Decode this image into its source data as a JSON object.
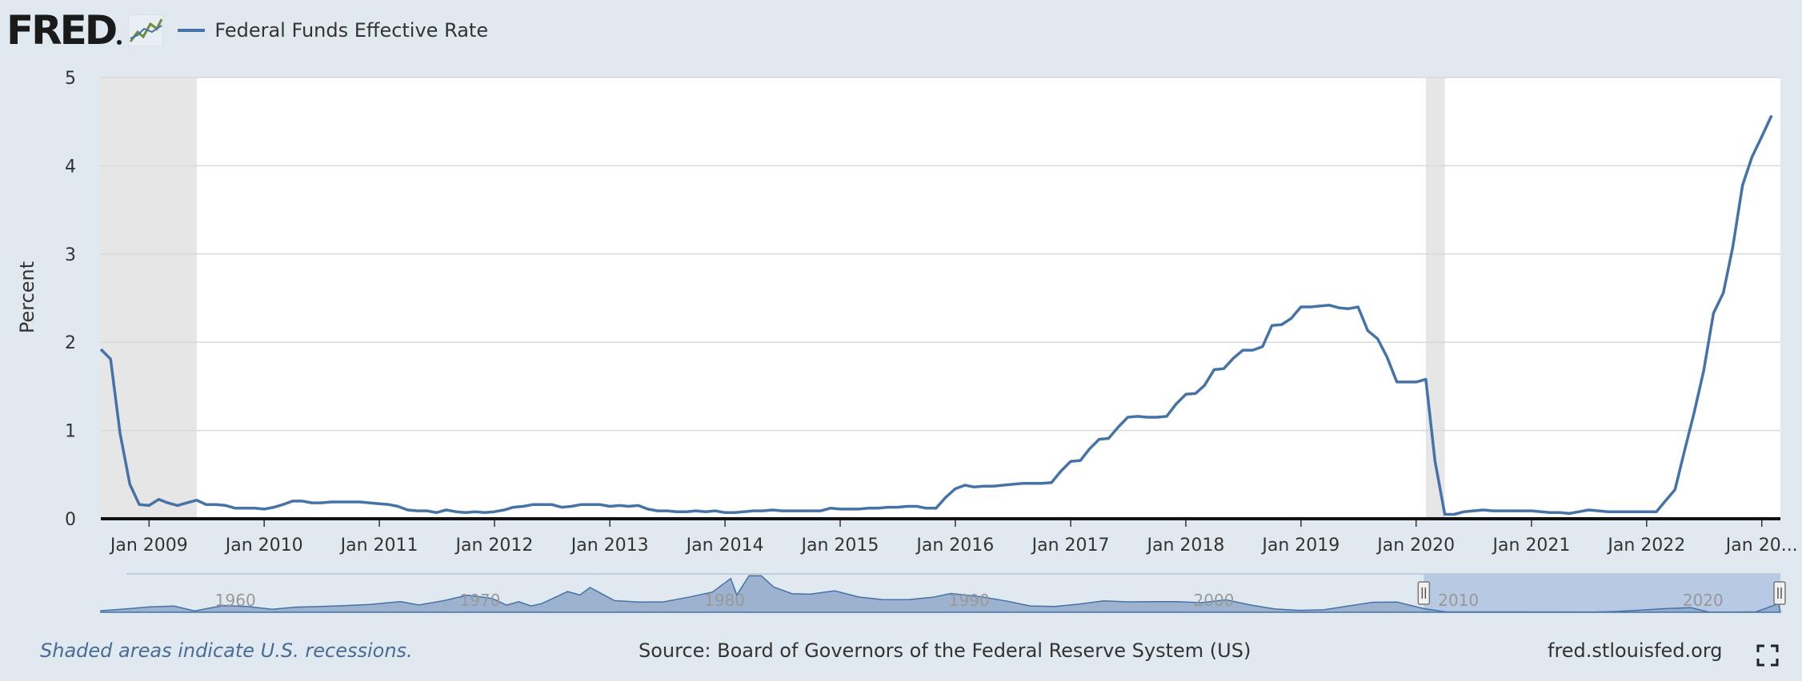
{
  "header": {
    "logo_text": "FRED",
    "legend_label": "Federal Funds Effective Rate"
  },
  "footer": {
    "note": "Shaded areas indicate U.S. recessions.",
    "source": "Source: Board of Governors of the Federal Reserve System (US)",
    "site": "fred.stlouisfed.org"
  },
  "colors": {
    "series": "#4572a7",
    "background": "#e1e9f0",
    "plot": "#ffffff",
    "recession": "#e6e6e6",
    "navigator_fill": "#8fa8c8",
    "navigator_window": "#b8c9e3"
  },
  "icons": {
    "logo_graph": "graph-icon",
    "fullscreen": "fullscreen-icon"
  },
  "chart_data": {
    "type": "line",
    "ylabel": "Percent",
    "ylim": [
      0,
      5
    ],
    "yticks": [
      0,
      1,
      2,
      3,
      4,
      5
    ],
    "xlim": [
      "2008-08-01",
      "2023-03-01"
    ],
    "xticks": [
      {
        "date": "2009-01-01",
        "label": "Jan 2009"
      },
      {
        "date": "2010-01-01",
        "label": "Jan 2010"
      },
      {
        "date": "2011-01-01",
        "label": "Jan 2011"
      },
      {
        "date": "2012-01-01",
        "label": "Jan 2012"
      },
      {
        "date": "2013-01-01",
        "label": "Jan 2013"
      },
      {
        "date": "2014-01-01",
        "label": "Jan 2014"
      },
      {
        "date": "2015-01-01",
        "label": "Jan 2015"
      },
      {
        "date": "2016-01-01",
        "label": "Jan 2016"
      },
      {
        "date": "2017-01-01",
        "label": "Jan 2017"
      },
      {
        "date": "2018-01-01",
        "label": "Jan 2018"
      },
      {
        "date": "2019-01-01",
        "label": "Jan 2019"
      },
      {
        "date": "2020-01-01",
        "label": "Jan 2020"
      },
      {
        "date": "2021-01-01",
        "label": "Jan 2021"
      },
      {
        "date": "2022-01-01",
        "label": "Jan 2022"
      },
      {
        "date": "2023-01-01",
        "label": "Jan 20..."
      }
    ],
    "grid": true,
    "recessions": [
      {
        "start": "2008-08-01",
        "end": "2009-06-01"
      },
      {
        "start": "2020-02-01",
        "end": "2020-04-01"
      }
    ],
    "series": [
      {
        "name": "Federal Funds Effective Rate",
        "points": [
          [
            "2008-08-01",
            1.92
          ],
          [
            "2008-09-01",
            1.81
          ],
          [
            "2008-10-01",
            0.97
          ],
          [
            "2008-11-01",
            0.39
          ],
          [
            "2008-12-01",
            0.16
          ],
          [
            "2009-01-01",
            0.15
          ],
          [
            "2009-02-01",
            0.22
          ],
          [
            "2009-03-01",
            0.18
          ],
          [
            "2009-04-01",
            0.15
          ],
          [
            "2009-05-01",
            0.18
          ],
          [
            "2009-06-01",
            0.21
          ],
          [
            "2009-07-01",
            0.16
          ],
          [
            "2009-08-01",
            0.16
          ],
          [
            "2009-09-01",
            0.15
          ],
          [
            "2009-10-01",
            0.12
          ],
          [
            "2009-11-01",
            0.12
          ],
          [
            "2009-12-01",
            0.12
          ],
          [
            "2010-01-01",
            0.11
          ],
          [
            "2010-02-01",
            0.13
          ],
          [
            "2010-03-01",
            0.16
          ],
          [
            "2010-04-01",
            0.2
          ],
          [
            "2010-05-01",
            0.2
          ],
          [
            "2010-06-01",
            0.18
          ],
          [
            "2010-07-01",
            0.18
          ],
          [
            "2010-08-01",
            0.19
          ],
          [
            "2010-09-01",
            0.19
          ],
          [
            "2010-10-01",
            0.19
          ],
          [
            "2010-11-01",
            0.19
          ],
          [
            "2010-12-01",
            0.18
          ],
          [
            "2011-01-01",
            0.17
          ],
          [
            "2011-02-01",
            0.16
          ],
          [
            "2011-03-01",
            0.14
          ],
          [
            "2011-04-01",
            0.1
          ],
          [
            "2011-05-01",
            0.09
          ],
          [
            "2011-06-01",
            0.09
          ],
          [
            "2011-07-01",
            0.07
          ],
          [
            "2011-08-01",
            0.1
          ],
          [
            "2011-09-01",
            0.08
          ],
          [
            "2011-10-01",
            0.07
          ],
          [
            "2011-11-01",
            0.08
          ],
          [
            "2011-12-01",
            0.07
          ],
          [
            "2012-01-01",
            0.08
          ],
          [
            "2012-02-01",
            0.1
          ],
          [
            "2012-03-01",
            0.13
          ],
          [
            "2012-04-01",
            0.14
          ],
          [
            "2012-05-01",
            0.16
          ],
          [
            "2012-06-01",
            0.16
          ],
          [
            "2012-07-01",
            0.16
          ],
          [
            "2012-08-01",
            0.13
          ],
          [
            "2012-09-01",
            0.14
          ],
          [
            "2012-10-01",
            0.16
          ],
          [
            "2012-11-01",
            0.16
          ],
          [
            "2012-12-01",
            0.16
          ],
          [
            "2013-01-01",
            0.14
          ],
          [
            "2013-02-01",
            0.15
          ],
          [
            "2013-03-01",
            0.14
          ],
          [
            "2013-04-01",
            0.15
          ],
          [
            "2013-05-01",
            0.11
          ],
          [
            "2013-06-01",
            0.09
          ],
          [
            "2013-07-01",
            0.09
          ],
          [
            "2013-08-01",
            0.08
          ],
          [
            "2013-09-01",
            0.08
          ],
          [
            "2013-10-01",
            0.09
          ],
          [
            "2013-11-01",
            0.08
          ],
          [
            "2013-12-01",
            0.09
          ],
          [
            "2014-01-01",
            0.07
          ],
          [
            "2014-02-01",
            0.07
          ],
          [
            "2014-03-01",
            0.08
          ],
          [
            "2014-04-01",
            0.09
          ],
          [
            "2014-05-01",
            0.09
          ],
          [
            "2014-06-01",
            0.1
          ],
          [
            "2014-07-01",
            0.09
          ],
          [
            "2014-08-01",
            0.09
          ],
          [
            "2014-09-01",
            0.09
          ],
          [
            "2014-10-01",
            0.09
          ],
          [
            "2014-11-01",
            0.09
          ],
          [
            "2014-12-01",
            0.12
          ],
          [
            "2015-01-01",
            0.11
          ],
          [
            "2015-02-01",
            0.11
          ],
          [
            "2015-03-01",
            0.11
          ],
          [
            "2015-04-01",
            0.12
          ],
          [
            "2015-05-01",
            0.12
          ],
          [
            "2015-06-01",
            0.13
          ],
          [
            "2015-07-01",
            0.13
          ],
          [
            "2015-08-01",
            0.14
          ],
          [
            "2015-09-01",
            0.14
          ],
          [
            "2015-10-01",
            0.12
          ],
          [
            "2015-11-01",
            0.12
          ],
          [
            "2015-12-01",
            0.24
          ],
          [
            "2016-01-01",
            0.34
          ],
          [
            "2016-02-01",
            0.38
          ],
          [
            "2016-03-01",
            0.36
          ],
          [
            "2016-04-01",
            0.37
          ],
          [
            "2016-05-01",
            0.37
          ],
          [
            "2016-06-01",
            0.38
          ],
          [
            "2016-07-01",
            0.39
          ],
          [
            "2016-08-01",
            0.4
          ],
          [
            "2016-09-01",
            0.4
          ],
          [
            "2016-10-01",
            0.4
          ],
          [
            "2016-11-01",
            0.41
          ],
          [
            "2016-12-01",
            0.54
          ],
          [
            "2017-01-01",
            0.65
          ],
          [
            "2017-02-01",
            0.66
          ],
          [
            "2017-03-01",
            0.79
          ],
          [
            "2017-04-01",
            0.9
          ],
          [
            "2017-05-01",
            0.91
          ],
          [
            "2017-06-01",
            1.04
          ],
          [
            "2017-07-01",
            1.15
          ],
          [
            "2017-08-01",
            1.16
          ],
          [
            "2017-09-01",
            1.15
          ],
          [
            "2017-10-01",
            1.15
          ],
          [
            "2017-11-01",
            1.16
          ],
          [
            "2017-12-01",
            1.3
          ],
          [
            "2018-01-01",
            1.41
          ],
          [
            "2018-02-01",
            1.42
          ],
          [
            "2018-03-01",
            1.51
          ],
          [
            "2018-04-01",
            1.69
          ],
          [
            "2018-05-01",
            1.7
          ],
          [
            "2018-06-01",
            1.82
          ],
          [
            "2018-07-01",
            1.91
          ],
          [
            "2018-08-01",
            1.91
          ],
          [
            "2018-09-01",
            1.95
          ],
          [
            "2018-10-01",
            2.19
          ],
          [
            "2018-11-01",
            2.2
          ],
          [
            "2018-12-01",
            2.27
          ],
          [
            "2019-01-01",
            2.4
          ],
          [
            "2019-02-01",
            2.4
          ],
          [
            "2019-03-01",
            2.41
          ],
          [
            "2019-04-01",
            2.42
          ],
          [
            "2019-05-01",
            2.39
          ],
          [
            "2019-06-01",
            2.38
          ],
          [
            "2019-07-01",
            2.4
          ],
          [
            "2019-08-01",
            2.13
          ],
          [
            "2019-09-01",
            2.04
          ],
          [
            "2019-10-01",
            1.83
          ],
          [
            "2019-11-01",
            1.55
          ],
          [
            "2019-12-01",
            1.55
          ],
          [
            "2020-01-01",
            1.55
          ],
          [
            "2020-02-01",
            1.58
          ],
          [
            "2020-03-01",
            0.65
          ],
          [
            "2020-04-01",
            0.05
          ],
          [
            "2020-05-01",
            0.05
          ],
          [
            "2020-06-01",
            0.08
          ],
          [
            "2020-07-01",
            0.09
          ],
          [
            "2020-08-01",
            0.1
          ],
          [
            "2020-09-01",
            0.09
          ],
          [
            "2020-10-01",
            0.09
          ],
          [
            "2020-11-01",
            0.09
          ],
          [
            "2020-12-01",
            0.09
          ],
          [
            "2021-01-01",
            0.09
          ],
          [
            "2021-02-01",
            0.08
          ],
          [
            "2021-03-01",
            0.07
          ],
          [
            "2021-04-01",
            0.07
          ],
          [
            "2021-05-01",
            0.06
          ],
          [
            "2021-06-01",
            0.08
          ],
          [
            "2021-07-01",
            0.1
          ],
          [
            "2021-08-01",
            0.09
          ],
          [
            "2021-09-01",
            0.08
          ],
          [
            "2021-10-01",
            0.08
          ],
          [
            "2021-11-01",
            0.08
          ],
          [
            "2021-12-01",
            0.08
          ],
          [
            "2022-01-01",
            0.08
          ],
          [
            "2022-02-01",
            0.08
          ],
          [
            "2022-03-01",
            0.2
          ],
          [
            "2022-04-01",
            0.33
          ],
          [
            "2022-05-01",
            0.77
          ],
          [
            "2022-06-01",
            1.21
          ],
          [
            "2022-07-01",
            1.68
          ],
          [
            "2022-08-01",
            2.33
          ],
          [
            "2022-09-01",
            2.56
          ],
          [
            "2022-10-01",
            3.08
          ],
          [
            "2022-11-01",
            3.78
          ],
          [
            "2022-12-01",
            4.1
          ],
          [
            "2023-01-01",
            4.33
          ],
          [
            "2023-02-01",
            4.57
          ]
        ]
      }
    ],
    "navigator": {
      "labels": [
        "1960",
        "1970",
        "1980",
        "1990",
        "2000",
        "2010",
        "2020"
      ],
      "range": [
        "1954-07-01",
        "2023-03-01"
      ],
      "selected": [
        "2008-08-01",
        "2023-03-01"
      ],
      "points": [
        [
          "1954-07-01",
          0.8
        ],
        [
          "1955-07-01",
          1.7
        ],
        [
          "1956-07-01",
          2.8
        ],
        [
          "1957-07-01",
          3.2
        ],
        [
          "1958-05-01",
          0.7
        ],
        [
          "1959-07-01",
          3.5
        ],
        [
          "1960-07-01",
          3.0
        ],
        [
          "1961-07-01",
          1.6
        ],
        [
          "1962-07-01",
          2.7
        ],
        [
          "1963-07-01",
          3.0
        ],
        [
          "1964-07-01",
          3.5
        ],
        [
          "1965-07-01",
          4.1
        ],
        [
          "1966-10-01",
          5.6
        ],
        [
          "1967-07-01",
          3.8
        ],
        [
          "1968-07-01",
          6.0
        ],
        [
          "1969-07-01",
          8.9
        ],
        [
          "1970-07-01",
          7.2
        ],
        [
          "1971-02-01",
          3.7
        ],
        [
          "1971-08-01",
          5.5
        ],
        [
          "1972-02-01",
          3.3
        ],
        [
          "1972-07-01",
          4.4
        ],
        [
          "1973-08-01",
          10.8
        ],
        [
          "1974-02-01",
          9.0
        ],
        [
          "1974-07-01",
          12.9
        ],
        [
          "1975-07-01",
          6.1
        ],
        [
          "1976-07-01",
          5.3
        ],
        [
          "1977-07-01",
          5.4
        ],
        [
          "1978-07-01",
          7.8
        ],
        [
          "1979-07-01",
          10.5
        ],
        [
          "1980-04-01",
          17.6
        ],
        [
          "1980-07-01",
          9.0
        ],
        [
          "1981-01-01",
          19.1
        ],
        [
          "1981-07-01",
          19.0
        ],
        [
          "1982-01-01",
          13.2
        ],
        [
          "1982-10-01",
          9.7
        ],
        [
          "1983-07-01",
          9.4
        ],
        [
          "1984-07-01",
          11.2
        ],
        [
          "1985-07-01",
          7.9
        ],
        [
          "1986-07-01",
          6.6
        ],
        [
          "1987-07-01",
          6.6
        ],
        [
          "1988-07-01",
          7.8
        ],
        [
          "1989-04-01",
          9.8
        ],
        [
          "1990-07-01",
          8.1
        ],
        [
          "1991-07-01",
          5.9
        ],
        [
          "1992-07-01",
          3.3
        ],
        [
          "1993-07-01",
          3.0
        ],
        [
          "1994-07-01",
          4.3
        ],
        [
          "1995-07-01",
          5.9
        ],
        [
          "1996-07-01",
          5.4
        ],
        [
          "1997-07-01",
          5.5
        ],
        [
          "1998-07-01",
          5.5
        ],
        [
          "1999-07-01",
          5.0
        ],
        [
          "2000-07-01",
          6.5
        ],
        [
          "2001-07-01",
          3.8
        ],
        [
          "2002-07-01",
          1.7
        ],
        [
          "2003-07-01",
          1.0
        ],
        [
          "2004-07-01",
          1.3
        ],
        [
          "2005-07-01",
          3.3
        ],
        [
          "2006-07-01",
          5.2
        ],
        [
          "2007-07-01",
          5.3
        ],
        [
          "2008-08-01",
          1.9
        ],
        [
          "2009-07-01",
          0.16
        ],
        [
          "2012-07-01",
          0.16
        ],
        [
          "2015-07-01",
          0.13
        ],
        [
          "2016-07-01",
          0.4
        ],
        [
          "2017-07-01",
          1.15
        ],
        [
          "2018-07-01",
          1.91
        ],
        [
          "2019-07-01",
          2.4
        ],
        [
          "2020-04-01",
          0.05
        ],
        [
          "2021-07-01",
          0.1
        ],
        [
          "2022-03-01",
          0.2
        ],
        [
          "2022-09-01",
          2.56
        ],
        [
          "2023-02-01",
          4.57
        ]
      ]
    }
  }
}
